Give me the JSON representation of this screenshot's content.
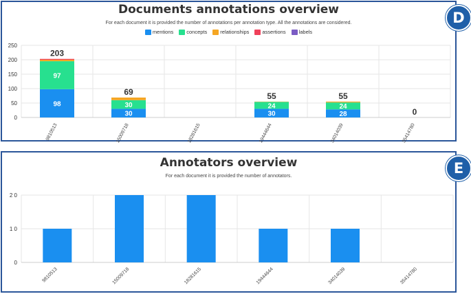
{
  "panels": {
    "d": {
      "label": "D",
      "title": "Documents annotations overview",
      "subtitle": "For each document it is provided the number of annotations per annotation type. All the annotations are considered."
    },
    "e": {
      "label": "E",
      "title": "Annotators overview",
      "subtitle": "For each document it is provided the number of annotators."
    }
  },
  "chart_data": [
    {
      "type": "bar",
      "stacked": true,
      "title": "Documents annotations overview",
      "categories": [
        "9810513",
        "15009718",
        "18281615",
        "19444644",
        "34014039",
        "35414780"
      ],
      "series": [
        {
          "name": "mentions",
          "color": "#1a8ff0",
          "values": [
            98,
            30,
            0,
            30,
            28,
            0
          ]
        },
        {
          "name": "concepts",
          "color": "#27e08f",
          "values": [
            97,
            30,
            0,
            24,
            24,
            0
          ]
        },
        {
          "name": "relationships",
          "color": "#f5a623",
          "values": [
            5,
            9,
            0,
            1,
            3,
            0
          ]
        },
        {
          "name": "assertions",
          "color": "#f0405a",
          "values": [
            3,
            0,
            0,
            0,
            0,
            0
          ]
        },
        {
          "name": "labels",
          "color": "#7b5cc4",
          "values": [
            0,
            0,
            0,
            0,
            0,
            0
          ]
        }
      ],
      "totals": [
        203,
        69,
        0,
        55,
        55,
        0
      ],
      "total_labels": [
        "203",
        "69",
        "",
        "55",
        "55",
        "0"
      ],
      "segment_labels": [
        [
          "98",
          "97"
        ],
        [
          "30",
          "30"
        ],
        [],
        [
          "30",
          "24"
        ],
        [
          "28",
          "24"
        ],
        []
      ],
      "yticks": [
        0,
        50,
        100,
        150,
        200,
        250
      ],
      "ylim": [
        0,
        250
      ],
      "grid": true,
      "legend": "top"
    },
    {
      "type": "bar",
      "title": "Annotators overview",
      "categories": [
        "9810513",
        "15009718",
        "18281615",
        "19444644",
        "34014039",
        "35414780"
      ],
      "values": [
        1,
        2,
        2,
        1,
        1,
        0
      ],
      "color": "#1a8ff0",
      "ytick_labels": [
        "0",
        "1 0",
        "2 0"
      ],
      "ylim": [
        0,
        2
      ],
      "grid": true
    }
  ]
}
